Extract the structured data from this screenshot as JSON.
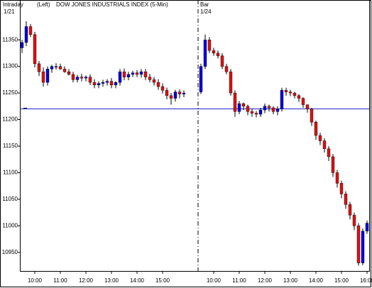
{
  "chart_data": {
    "type": "candlestick",
    "header": [
      "Intraday",
      "(Left)",
      "DOW JONES INDUSTRIALS INDEX  (5-Min)"
    ],
    "day_labels": [
      {
        "top": null,
        "bottom": "1/21"
      },
      {
        "top": "Bar",
        "bottom": "1/24"
      }
    ],
    "x": [
      0,
      1,
      2,
      3,
      4,
      5,
      6,
      7,
      8,
      9,
      10,
      11,
      12,
      13,
      14,
      15,
      16,
      17,
      18,
      19,
      20,
      21,
      22,
      23,
      24,
      25,
      26,
      27,
      28,
      29,
      30,
      31,
      32,
      33,
      34,
      35,
      36,
      37,
      38,
      42,
      43,
      44,
      45,
      46,
      47,
      48,
      49,
      50,
      51,
      52,
      53,
      54,
      55,
      56,
      57,
      58,
      59,
      60,
      61,
      62,
      63,
      64,
      65,
      66,
      67,
      68,
      69,
      70,
      71,
      72,
      73,
      74,
      75,
      76,
      77,
      78,
      79,
      80,
      81
    ],
    "open": [
      11335,
      11345,
      11375,
      11360,
      11305,
      11290,
      11270,
      11295,
      11300,
      11300,
      11295,
      11290,
      11285,
      11275,
      11280,
      11278,
      11280,
      11270,
      11265,
      11268,
      11270,
      11272,
      11265,
      11270,
      11290,
      11280,
      11285,
      11288,
      11285,
      11290,
      11280,
      11275,
      11270,
      11262,
      11255,
      11245,
      11240,
      11252,
      11248,
      11252,
      11300,
      11350,
      11330,
      11325,
      11320,
      11300,
      11290,
      11250,
      11215,
      11230,
      11225,
      11215,
      11212,
      11210,
      11218,
      11225,
      11222,
      11215,
      11220,
      11255,
      11252,
      11250,
      11245,
      11240,
      11228,
      11220,
      11195,
      11170,
      11160,
      11145,
      11130,
      11100,
      11080,
      11060,
      11040,
      11020,
      11000,
      10930,
      10990
    ],
    "high": [
      11350,
      11385,
      11380,
      11365,
      11310,
      11298,
      11300,
      11303,
      11306,
      11305,
      11300,
      11295,
      11290,
      11284,
      11286,
      11283,
      11285,
      11276,
      11272,
      11275,
      11276,
      11278,
      11272,
      11295,
      11296,
      11290,
      11292,
      11293,
      11295,
      11295,
      11286,
      11280,
      11276,
      11268,
      11260,
      11250,
      11256,
      11257,
      11255,
      11305,
      11360,
      11355,
      11335,
      11330,
      11325,
      11305,
      11295,
      11255,
      11235,
      11232,
      11228,
      11220,
      11216,
      11222,
      11230,
      11228,
      11225,
      11225,
      11260,
      11260,
      11256,
      11252,
      11248,
      11242,
      11226,
      11222,
      11198,
      11175,
      11165,
      11150,
      11135,
      11105,
      11085,
      11065,
      11045,
      11025,
      11005,
      10995,
      11010
    ],
    "low": [
      11325,
      11338,
      11355,
      11298,
      11282,
      11262,
      11264,
      11288,
      11294,
      11294,
      11288,
      11283,
      11270,
      11270,
      11272,
      11272,
      11265,
      11259,
      11259,
      11262,
      11264,
      11259,
      11259,
      11264,
      11274,
      11274,
      11280,
      11280,
      11279,
      11274,
      11270,
      11264,
      11256,
      11249,
      11238,
      11228,
      11234,
      11240,
      11242,
      11248,
      11295,
      11325,
      11320,
      11315,
      11295,
      11285,
      11245,
      11205,
      11210,
      11218,
      11208,
      11205,
      11204,
      11205,
      11212,
      11215,
      11210,
      11208,
      11215,
      11245,
      11244,
      11240,
      11233,
      11222,
      11213,
      11188,
      11162,
      11152,
      11138,
      11122,
      11092,
      11072,
      11052,
      11032,
      11012,
      10992,
      10925,
      10926,
      10985
    ],
    "close": [
      11345,
      11375,
      11360,
      11305,
      11290,
      11270,
      11295,
      11300,
      11300,
      11295,
      11290,
      11285,
      11275,
      11280,
      11278,
      11280,
      11270,
      11265,
      11268,
      11270,
      11272,
      11265,
      11270,
      11290,
      11280,
      11285,
      11288,
      11285,
      11290,
      11280,
      11275,
      11270,
      11262,
      11255,
      11245,
      11240,
      11252,
      11248,
      11250,
      11300,
      11350,
      11330,
      11325,
      11320,
      11300,
      11290,
      11250,
      11215,
      11230,
      11225,
      11215,
      11212,
      11210,
      11218,
      11225,
      11222,
      11215,
      11220,
      11255,
      11252,
      11250,
      11245,
      11240,
      11228,
      11220,
      11195,
      11170,
      11160,
      11145,
      11130,
      11100,
      11080,
      11060,
      11040,
      11020,
      11000,
      10930,
      10990,
      11005
    ],
    "up_color": "#0000dd",
    "down_color": "#dd1111",
    "reference_line": {
      "value": 11220,
      "color": "#2222cc"
    },
    "xlim": [
      -0.5,
      81.5
    ],
    "xticks": [
      {
        "value": 3,
        "label": "10:00"
      },
      {
        "value": 9,
        "label": "11:00"
      },
      {
        "value": 15,
        "label": "12:00"
      },
      {
        "value": 21,
        "label": "13:00"
      },
      {
        "value": 27,
        "label": "14:00"
      },
      {
        "value": 33,
        "label": "15:00"
      },
      {
        "value": 45,
        "label": "10:00"
      },
      {
        "value": 51,
        "label": "11:00"
      },
      {
        "value": 57,
        "label": "12:00"
      },
      {
        "value": 63,
        "label": "13:00"
      },
      {
        "value": 69,
        "label": "14:00"
      },
      {
        "value": 75,
        "label": "15:00"
      },
      {
        "value": 81,
        "label": "16:00"
      }
    ],
    "ylim": [
      10915,
      11425
    ],
    "yticks": [
      10950,
      11000,
      11050,
      11100,
      11150,
      11200,
      11250,
      11300,
      11350
    ]
  }
}
